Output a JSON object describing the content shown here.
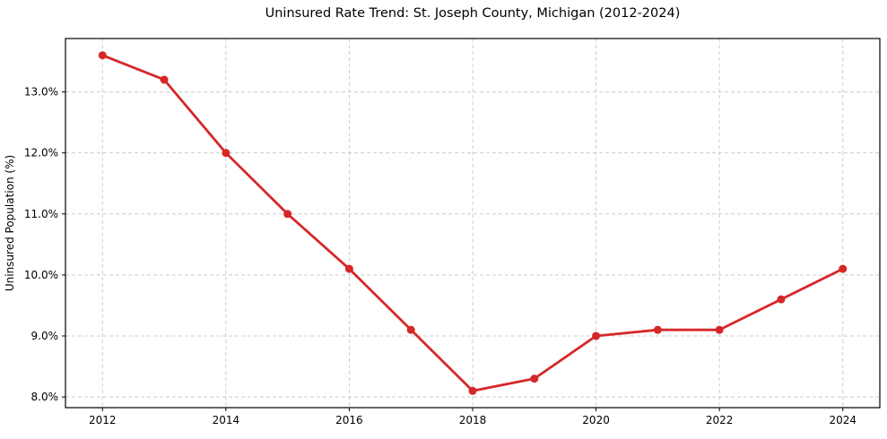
{
  "figure": {
    "background": "#ffffff"
  },
  "chart_data": {
    "type": "line",
    "title": "Uninsured Rate Trend: St. Joseph County, Michigan (2012-2024)",
    "xlabel": "",
    "ylabel": "Uninsured Population (%)",
    "x": [
      2012,
      2013,
      2014,
      2015,
      2016,
      2017,
      2018,
      2019,
      2020,
      2021,
      2022,
      2023,
      2024
    ],
    "values": [
      13.6,
      13.2,
      12.0,
      11.0,
      10.1,
      9.1,
      8.1,
      8.3,
      9.0,
      9.1,
      9.1,
      9.6,
      10.1
    ],
    "xlim": [
      2011.4,
      2024.6
    ],
    "ylim": [
      7.825,
      13.875
    ],
    "xticks": {
      "values": [
        2012,
        2014,
        2016,
        2018,
        2020,
        2022,
        2024
      ],
      "labels": [
        "2012",
        "2014",
        "2016",
        "2018",
        "2020",
        "2022",
        "2024"
      ]
    },
    "yticks": {
      "values": [
        8.0,
        9.0,
        10.0,
        11.0,
        12.0,
        13.0
      ],
      "labels": [
        "8.0%",
        "9.0%",
        "10.0%",
        "11.0%",
        "12.0%",
        "13.0%"
      ]
    },
    "grid": true,
    "grid_style": "dashed",
    "legend": false,
    "marker": "circle",
    "colors": {
      "line": "#d62728",
      "marker": "#d62728",
      "grid": "#cccccc",
      "axis": "#000000",
      "text": "#000000"
    }
  }
}
